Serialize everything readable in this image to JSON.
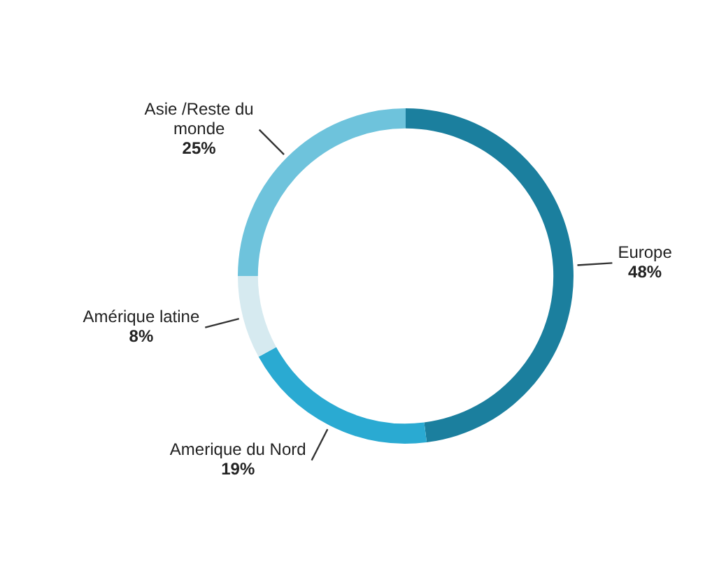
{
  "chart_data": {
    "type": "donut",
    "categories": [
      "Europe",
      "Amerique du Nord",
      "Amérique latine",
      "Asie /Reste du monde"
    ],
    "values": [
      48,
      19,
      8,
      25
    ],
    "colors": [
      "#1b7f9e",
      "#2aaad2",
      "#d6eaf0",
      "#6ec3dc"
    ],
    "value_labels": [
      "48%",
      "19%",
      "8%",
      "25%"
    ]
  }
}
